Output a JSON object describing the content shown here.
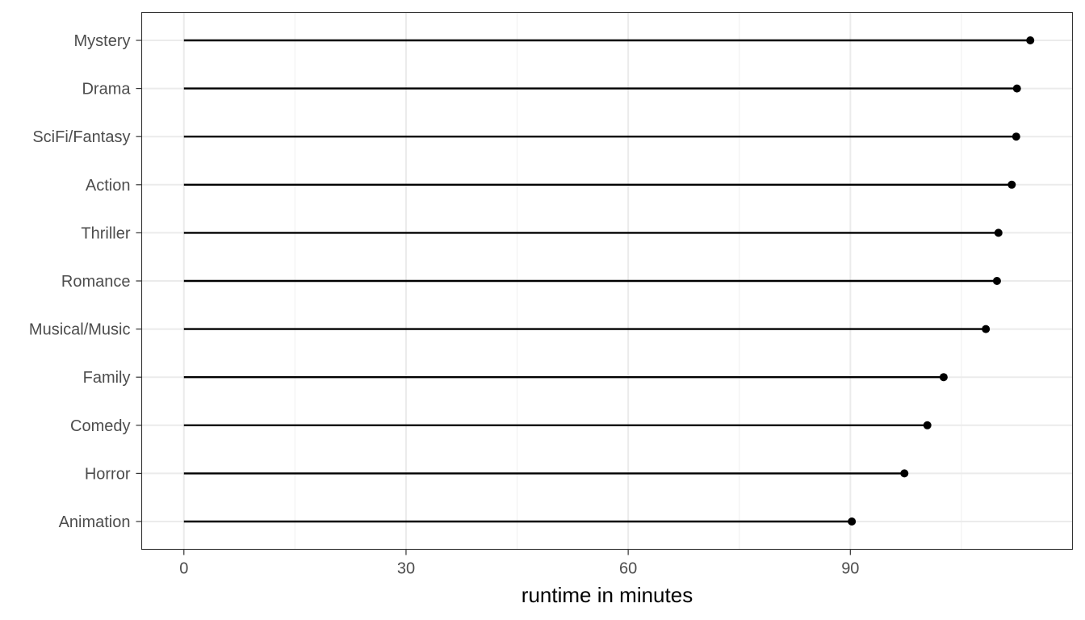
{
  "chart_data": {
    "type": "lollipop",
    "title": "",
    "xlabel": "runtime in minutes",
    "ylabel": "",
    "xlim": [
      -5.7,
      120
    ],
    "x_ticks": [
      0,
      30,
      60,
      90
    ],
    "grid": true,
    "categories": [
      "Mystery",
      "Drama",
      "SciFi/Fantasy",
      "Action",
      "Thriller",
      "Romance",
      "Musical/Music",
      "Family",
      "Comedy",
      "Horror",
      "Animation"
    ],
    "values": [
      114.3,
      112.5,
      112.4,
      111.8,
      110.0,
      109.8,
      108.3,
      102.6,
      100.4,
      97.3,
      90.2
    ],
    "colors": {
      "segment": "#000000",
      "point": "#000000",
      "grid_major": "#ebebeb",
      "grid_minor": "#f2f2f2",
      "panel_border": "#333333",
      "tick_text": "#4d4d4d"
    }
  }
}
